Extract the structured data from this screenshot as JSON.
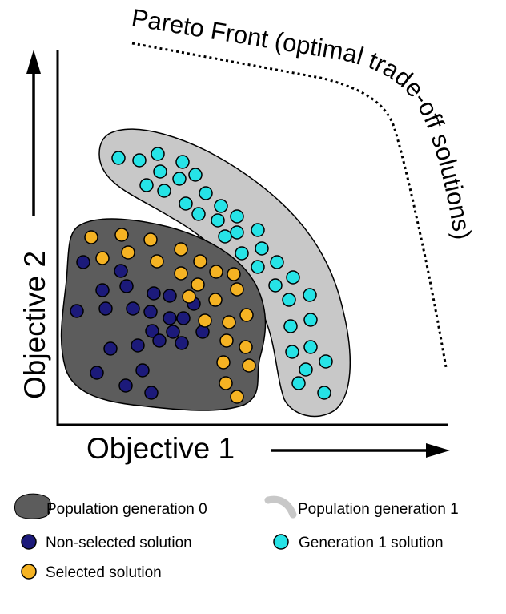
{
  "colors": {
    "gen0_fill": "#5c5c5c",
    "gen1_fill": "#c8c8c8",
    "non_selected": "#1c1a7a",
    "selected": "#f5b323",
    "gen1_solution": "#26e3e6",
    "stroke": "#000000"
  },
  "axes": {
    "x_label": "Objective 1",
    "y_label": "Objective 2"
  },
  "pareto_front": {
    "label": "Pareto Front (optimal trade-off solutions)"
  },
  "legend": [
    {
      "label": "Population generation 0",
      "marker": "blob-dark"
    },
    {
      "label": "Population generation 1",
      "marker": "arc-light"
    },
    {
      "label": "Non-selected solution",
      "marker": "dot-navy"
    },
    {
      "label": "Generation 1 solution",
      "marker": "dot-cyan"
    },
    {
      "label": "Selected solution",
      "marker": "dot-orange"
    }
  ]
}
